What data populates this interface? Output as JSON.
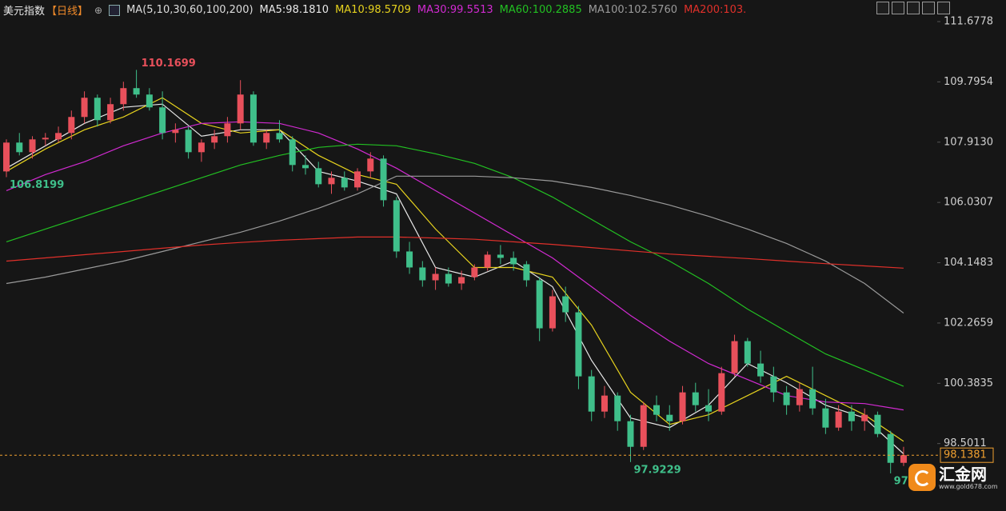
{
  "chart_data": {
    "type": "candlestick",
    "title": "美元指数",
    "period": "【日线】",
    "ma_title": "MA(5,10,30,60,100,200)",
    "ylim": [
      96.745,
      111.853
    ],
    "yticks": [
      111.6778,
      109.7954,
      {
        "value": 107.913,
        "label": "107.9130"
      },
      106.0307,
      104.1483,
      102.2659,
      100.3835,
      98.5011
    ],
    "up_color": "#e8505b",
    "down_color": "#3fbf8a",
    "last_price": 98.1381,
    "last_price_color": "#f0a030",
    "ohlc": [
      [
        107.0,
        108.0,
        106.8199,
        107.9
      ],
      [
        107.9,
        108.2,
        107.5,
        107.6
      ],
      [
        107.6,
        108.1,
        107.4,
        108.0
      ],
      [
        108.0,
        108.2,
        107.8,
        108.05
      ],
      [
        108.0,
        108.4,
        107.9,
        108.2
      ],
      [
        108.2,
        108.9,
        108.0,
        108.7
      ],
      [
        108.7,
        109.5,
        108.5,
        109.3
      ],
      [
        109.3,
        109.4,
        108.4,
        108.6
      ],
      [
        108.6,
        109.3,
        108.5,
        109.1
      ],
      [
        109.1,
        109.8,
        108.9,
        109.6
      ],
      [
        109.6,
        110.1699,
        109.3,
        109.4
      ],
      [
        109.4,
        109.6,
        108.9,
        109.0
      ],
      [
        109.0,
        109.5,
        108.0,
        108.2
      ],
      [
        108.2,
        108.5,
        107.9,
        108.3
      ],
      [
        108.3,
        108.4,
        107.4,
        107.6
      ],
      [
        107.6,
        108.0,
        107.3,
        107.9
      ],
      [
        107.9,
        108.3,
        107.7,
        108.1
      ],
      [
        108.1,
        108.7,
        107.9,
        108.5
      ],
      [
        108.5,
        109.85,
        108.3,
        109.4
      ],
      [
        109.4,
        109.5,
        107.8,
        107.9
      ],
      [
        107.9,
        108.3,
        107.7,
        108.2
      ],
      [
        108.2,
        108.6,
        107.9,
        108.0
      ],
      [
        108.0,
        108.1,
        107.0,
        107.2
      ],
      [
        107.2,
        107.5,
        106.9,
        107.1
      ],
      [
        107.1,
        107.3,
        106.5,
        106.6
      ],
      [
        106.6,
        107.0,
        106.3,
        106.8
      ],
      [
        106.8,
        107.0,
        106.4,
        106.5
      ],
      [
        106.5,
        107.1,
        106.4,
        107.0
      ],
      [
        107.0,
        107.6,
        106.8,
        107.4
      ],
      [
        107.4,
        107.5,
        105.9,
        106.1
      ],
      [
        106.1,
        106.2,
        104.3,
        104.5
      ],
      [
        104.5,
        104.8,
        103.8,
        104.0
      ],
      [
        104.0,
        104.2,
        103.4,
        103.6
      ],
      [
        103.6,
        104.0,
        103.3,
        103.8
      ],
      [
        103.8,
        104.0,
        103.4,
        103.5
      ],
      [
        103.5,
        103.9,
        103.3,
        103.7
      ],
      [
        103.7,
        104.1,
        103.6,
        104.0
      ],
      [
        104.0,
        104.5,
        103.9,
        104.4
      ],
      [
        104.4,
        104.7,
        104.1,
        104.3
      ],
      [
        104.3,
        104.5,
        103.9,
        104.1
      ],
      [
        104.1,
        104.2,
        103.4,
        103.6
      ],
      [
        103.6,
        103.7,
        101.7,
        102.1
      ],
      [
        102.1,
        103.3,
        102.0,
        103.1
      ],
      [
        103.1,
        103.4,
        102.3,
        102.6
      ],
      [
        102.6,
        102.8,
        100.2,
        100.6
      ],
      [
        100.6,
        100.8,
        99.2,
        99.5
      ],
      [
        99.5,
        100.3,
        99.3,
        100.0
      ],
      [
        100.0,
        100.1,
        98.9,
        99.2
      ],
      [
        99.2,
        99.4,
        97.9229,
        98.4
      ],
      [
        98.4,
        99.8,
        98.3,
        99.7
      ],
      [
        99.7,
        100.0,
        99.2,
        99.4
      ],
      [
        99.4,
        99.7,
        98.9,
        99.2
      ],
      [
        99.2,
        100.3,
        99.1,
        100.1
      ],
      [
        100.1,
        100.4,
        99.5,
        99.7
      ],
      [
        99.7,
        100.2,
        99.2,
        99.5
      ],
      [
        99.5,
        100.9,
        99.4,
        100.7
      ],
      [
        100.7,
        101.9,
        100.6,
        101.7
      ],
      [
        101.7,
        101.8,
        100.9,
        101.0
      ],
      [
        101.0,
        101.4,
        100.4,
        100.6
      ],
      [
        100.6,
        100.9,
        99.8,
        100.1
      ],
      [
        100.1,
        100.3,
        99.4,
        99.7
      ],
      [
        99.7,
        100.4,
        99.5,
        100.2
      ],
      [
        100.2,
        100.9,
        99.4,
        99.6
      ],
      [
        99.6,
        99.9,
        98.8,
        99.0
      ],
      [
        99.0,
        99.7,
        98.9,
        99.5
      ],
      [
        99.5,
        99.7,
        98.9,
        99.2
      ],
      [
        99.2,
        99.6,
        98.9,
        99.4
      ],
      [
        99.4,
        99.5,
        98.7,
        98.8
      ],
      [
        98.8,
        98.9,
        97.57,
        97.9
      ],
      [
        97.9,
        98.4,
        97.8,
        98.1381
      ]
    ],
    "ma_x": [
      0,
      3,
      6,
      9,
      12,
      15,
      18,
      21,
      24,
      27,
      30,
      33,
      36,
      39,
      42,
      45,
      48,
      51,
      54,
      57,
      60,
      63,
      66,
      69
    ],
    "series": [
      {
        "name": "MA5",
        "legend_label": "MA5:98.1810",
        "color": "#e8e8e8",
        "values": [
          107.1,
          107.8,
          108.5,
          109.0,
          109.1,
          108.1,
          108.3,
          108.3,
          107.0,
          106.7,
          106.3,
          104.0,
          103.7,
          104.2,
          103.4,
          101.1,
          99.3,
          99.0,
          99.7,
          101.0,
          100.4,
          99.7,
          99.3,
          98.181
        ]
      },
      {
        "name": "MA10",
        "legend_label": "MA10:98.5709",
        "color": "#e6d21e",
        "values": [
          107.0,
          107.7,
          108.3,
          108.7,
          109.3,
          108.5,
          108.2,
          108.3,
          107.5,
          106.9,
          106.6,
          105.2,
          104.0,
          104.0,
          103.7,
          102.2,
          100.1,
          99.1,
          99.4,
          100.0,
          100.6,
          100.0,
          99.4,
          98.5709
        ]
      },
      {
        "name": "MA30",
        "legend_label": "MA30:99.5513",
        "color": "#d22ad2",
        "values": [
          106.4,
          106.9,
          107.3,
          107.8,
          108.2,
          108.5,
          108.55,
          108.5,
          108.2,
          107.7,
          107.1,
          106.4,
          105.7,
          105.0,
          104.3,
          103.4,
          102.5,
          101.7,
          101.0,
          100.5,
          100.0,
          99.8,
          99.75,
          99.5513
        ]
      },
      {
        "name": "MA60",
        "legend_label": "MA60:100.2885",
        "color": "#22c022",
        "values": [
          104.8,
          105.2,
          105.6,
          106.0,
          106.4,
          106.8,
          107.2,
          107.5,
          107.75,
          107.85,
          107.8,
          107.55,
          107.25,
          106.8,
          106.2,
          105.5,
          104.8,
          104.2,
          103.5,
          102.7,
          102.0,
          101.3,
          100.8,
          100.2885
        ]
      },
      {
        "name": "MA100",
        "legend_label": "MA100:102.5760",
        "color": "#9a9a9a",
        "values": [
          103.5,
          103.7,
          103.95,
          104.2,
          104.5,
          104.8,
          105.1,
          105.45,
          105.85,
          106.3,
          106.85,
          106.85,
          106.85,
          106.8,
          106.7,
          106.5,
          106.25,
          105.95,
          105.6,
          105.2,
          104.75,
          104.2,
          103.5,
          102.576
        ]
      },
      {
        "name": "MA200",
        "legend_label": "MA200:103.",
        "color": "#e0302a",
        "values": [
          104.2,
          104.3,
          104.4,
          104.5,
          104.6,
          104.7,
          104.78,
          104.85,
          104.9,
          104.95,
          104.95,
          104.92,
          104.88,
          104.8,
          104.72,
          104.62,
          104.52,
          104.42,
          104.35,
          104.28,
          104.2,
          104.12,
          104.05,
          103.98
        ]
      }
    ],
    "annotations": [
      {
        "text": "110.1699",
        "candle": 10,
        "color": "#e8505b"
      },
      {
        "text": "106.8199",
        "candle": 0,
        "color": "#3fbf8a"
      },
      {
        "text": "97.9229",
        "candle": 48,
        "color": "#3fbf8a"
      },
      {
        "text": "97.",
        "candle": 68,
        "color": "#3fbf8a"
      }
    ]
  },
  "logo": {
    "name": "汇金网",
    "url": "www.gold678.com"
  }
}
